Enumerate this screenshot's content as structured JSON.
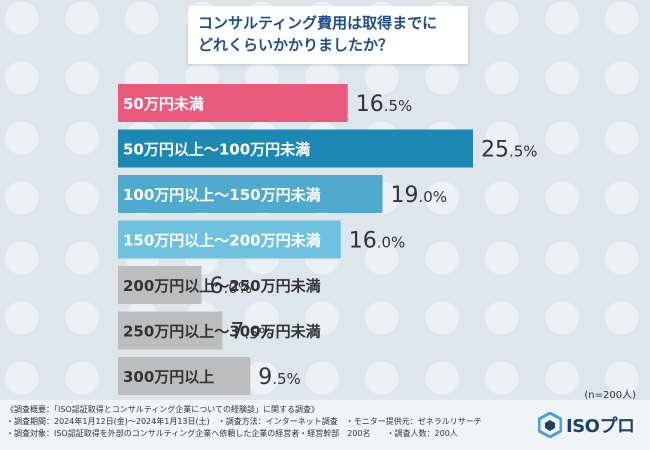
{
  "question": {
    "line1": "コンサルティング費用は取得までに",
    "line2": "どれくらいかかりましたか？"
  },
  "chart_data": {
    "type": "bar",
    "orientation": "horizontal",
    "title": "コンサルティング費用は取得までにどれくらいかかりましたか？",
    "categories": [
      "50万円未満",
      "50万円以上～100万円未満",
      "100万円以上～150万円未満",
      "150万円以上～200万円未満",
      "200万円以上～250万円未満",
      "250万円以上～300万円未満",
      "300万円以上"
    ],
    "values": [
      16.5,
      25.5,
      19.0,
      16.0,
      6.0,
      7.5,
      9.5
    ],
    "value_labels": [
      "16.5",
      "25.5",
      "19.0",
      "16.0",
      "6.0",
      "7.5",
      "9.5"
    ],
    "unit": "%",
    "bar_colors": [
      "#ea5a7c",
      "#1e88b4",
      "#50a9cf",
      "#6ec2df",
      "#bdbdbd",
      "#bdbdbd",
      "#bdbdbd"
    ],
    "xlim": [
      0,
      25.5
    ],
    "sample_note": "(n=200人)"
  },
  "footer": {
    "line1": "《調査概要：「ISO認証取得とコンサルティング企業についての経験談」に関する調査》",
    "line2": "・調査期間：2024年1月12日(金)～2024年1月13日(土)　・調査方法：インターネット調査　・モニター提供元：ゼネラルリサーチ",
    "line3": "・調査対象：ISO認証取得を外部のコンサルティング企業へ依頼した企業の経営者・経営幹部　200名　　・調査人数：200人"
  },
  "logo": {
    "text": "ISOプロ",
    "icon": "hexagon-logo-icon",
    "color": "#1f3f6d",
    "accent": "#4aa3d8"
  }
}
